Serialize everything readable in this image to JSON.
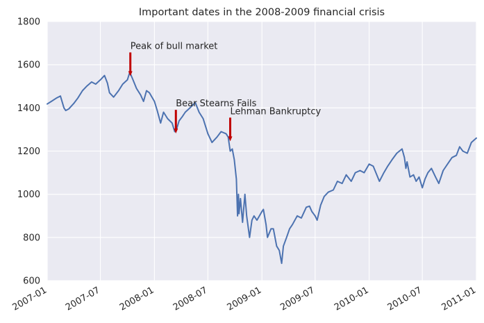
{
  "chart_data": {
    "type": "line",
    "title": "Important dates in the 2008-2009 financial crisis",
    "xlabel": "",
    "ylabel": "",
    "xlim": [
      "2007-01-01",
      "2011-01-01"
    ],
    "ylim": [
      600,
      1800
    ],
    "x_ticks": [
      "2007-01",
      "2007-07",
      "2008-01",
      "2008-07",
      "2009-01",
      "2009-07",
      "2010-01",
      "2010-07",
      "2011-01"
    ],
    "y_ticks": [
      600,
      800,
      1000,
      1200,
      1400,
      1600,
      1800
    ],
    "grid": true,
    "series_color": "#4c72b0",
    "background_color": "#eaeaf2",
    "arrow_color": "#c00000",
    "series": [
      {
        "x": [
          "2007-01-01",
          "2007-01-15",
          "2007-02-01",
          "2007-02-15",
          "2007-02-27",
          "2007-03-05",
          "2007-03-15",
          "2007-04-01",
          "2007-04-15",
          "2007-05-01",
          "2007-05-15",
          "2007-06-01",
          "2007-06-15",
          "2007-07-01",
          "2007-07-15",
          "2007-07-25",
          "2007-08-01",
          "2007-08-15",
          "2007-09-01",
          "2007-09-15",
          "2007-10-01",
          "2007-10-09",
          "2007-10-20",
          "2007-11-01",
          "2007-11-15",
          "2007-11-25",
          "2007-12-05",
          "2007-12-15",
          "2008-01-01",
          "2008-01-10",
          "2008-01-22",
          "2008-02-01",
          "2008-02-15",
          "2008-03-01",
          "2008-03-10",
          "2008-03-15",
          "2008-03-25",
          "2008-04-05",
          "2008-04-15",
          "2008-05-01",
          "2008-05-19",
          "2008-06-01",
          "2008-06-15",
          "2008-07-01",
          "2008-07-15",
          "2008-08-01",
          "2008-08-15",
          "2008-09-01",
          "2008-09-08",
          "2008-09-15",
          "2008-09-22",
          "2008-09-29",
          "2008-10-06",
          "2008-10-10",
          "2008-10-13",
          "2008-10-15",
          "2008-10-20",
          "2008-10-27",
          "2008-11-04",
          "2008-11-10",
          "2008-11-20",
          "2008-11-28",
          "2008-12-05",
          "2008-12-15",
          "2009-01-01",
          "2009-01-06",
          "2009-01-15",
          "2009-01-20",
          "2009-02-01",
          "2009-02-09",
          "2009-02-20",
          "2009-03-01",
          "2009-03-09",
          "2009-03-15",
          "2009-03-26",
          "2009-04-05",
          "2009-04-15",
          "2009-05-01",
          "2009-05-15",
          "2009-06-01",
          "2009-06-12",
          "2009-06-20",
          "2009-07-01",
          "2009-07-08",
          "2009-07-20",
          "2009-08-01",
          "2009-08-15",
          "2009-09-01",
          "2009-09-15",
          "2009-10-01",
          "2009-10-15",
          "2009-11-01",
          "2009-11-15",
          "2009-12-01",
          "2009-12-15",
          "2010-01-01",
          "2010-01-15",
          "2010-02-05",
          "2010-02-20",
          "2010-03-05",
          "2010-03-20",
          "2010-04-05",
          "2010-04-23",
          "2010-05-01",
          "2010-05-06",
          "2010-05-10",
          "2010-05-20",
          "2010-06-01",
          "2010-06-10",
          "2010-06-20",
          "2010-07-01",
          "2010-07-10",
          "2010-07-20",
          "2010-08-01",
          "2010-08-15",
          "2010-08-26",
          "2010-09-10",
          "2010-09-25",
          "2010-10-10",
          "2010-10-25",
          "2010-11-05",
          "2010-11-16",
          "2010-12-01",
          "2010-12-15",
          "2011-01-01"
        ],
        "y": [
          1418,
          1430,
          1445,
          1455,
          1400,
          1388,
          1395,
          1420,
          1445,
          1480,
          1500,
          1520,
          1510,
          1530,
          1550,
          1515,
          1470,
          1450,
          1480,
          1510,
          1530,
          1565,
          1530,
          1490,
          1460,
          1430,
          1480,
          1470,
          1430,
          1390,
          1330,
          1380,
          1350,
          1330,
          1290,
          1295,
          1340,
          1360,
          1380,
          1400,
          1425,
          1380,
          1350,
          1280,
          1240,
          1265,
          1290,
          1280,
          1265,
          1200,
          1210,
          1160,
          1070,
          900,
          1000,
          910,
          980,
          870,
          1000,
          900,
          800,
          880,
          900,
          880,
          920,
          930,
          860,
          800,
          840,
          840,
          760,
          740,
          680,
          760,
          800,
          840,
          860,
          900,
          890,
          940,
          945,
          920,
          900,
          880,
          950,
          990,
          1010,
          1020,
          1060,
          1050,
          1090,
          1060,
          1100,
          1110,
          1100,
          1140,
          1130,
          1060,
          1100,
          1130,
          1160,
          1190,
          1210,
          1170,
          1120,
          1150,
          1080,
          1090,
          1060,
          1080,
          1030,
          1070,
          1100,
          1120,
          1080,
          1050,
          1110,
          1140,
          1170,
          1180,
          1220,
          1200,
          1190,
          1240,
          1260
        ]
      }
    ],
    "annotations": [
      {
        "text": "Peak of bull market",
        "date": "2007-10-11",
        "value": 1554
      },
      {
        "text": "Bear Stearns Fails",
        "date": "2008-03-14",
        "value": 1288
      },
      {
        "text": "Lehman Bankruptcy",
        "date": "2008-09-15",
        "value": 1252
      }
    ]
  }
}
